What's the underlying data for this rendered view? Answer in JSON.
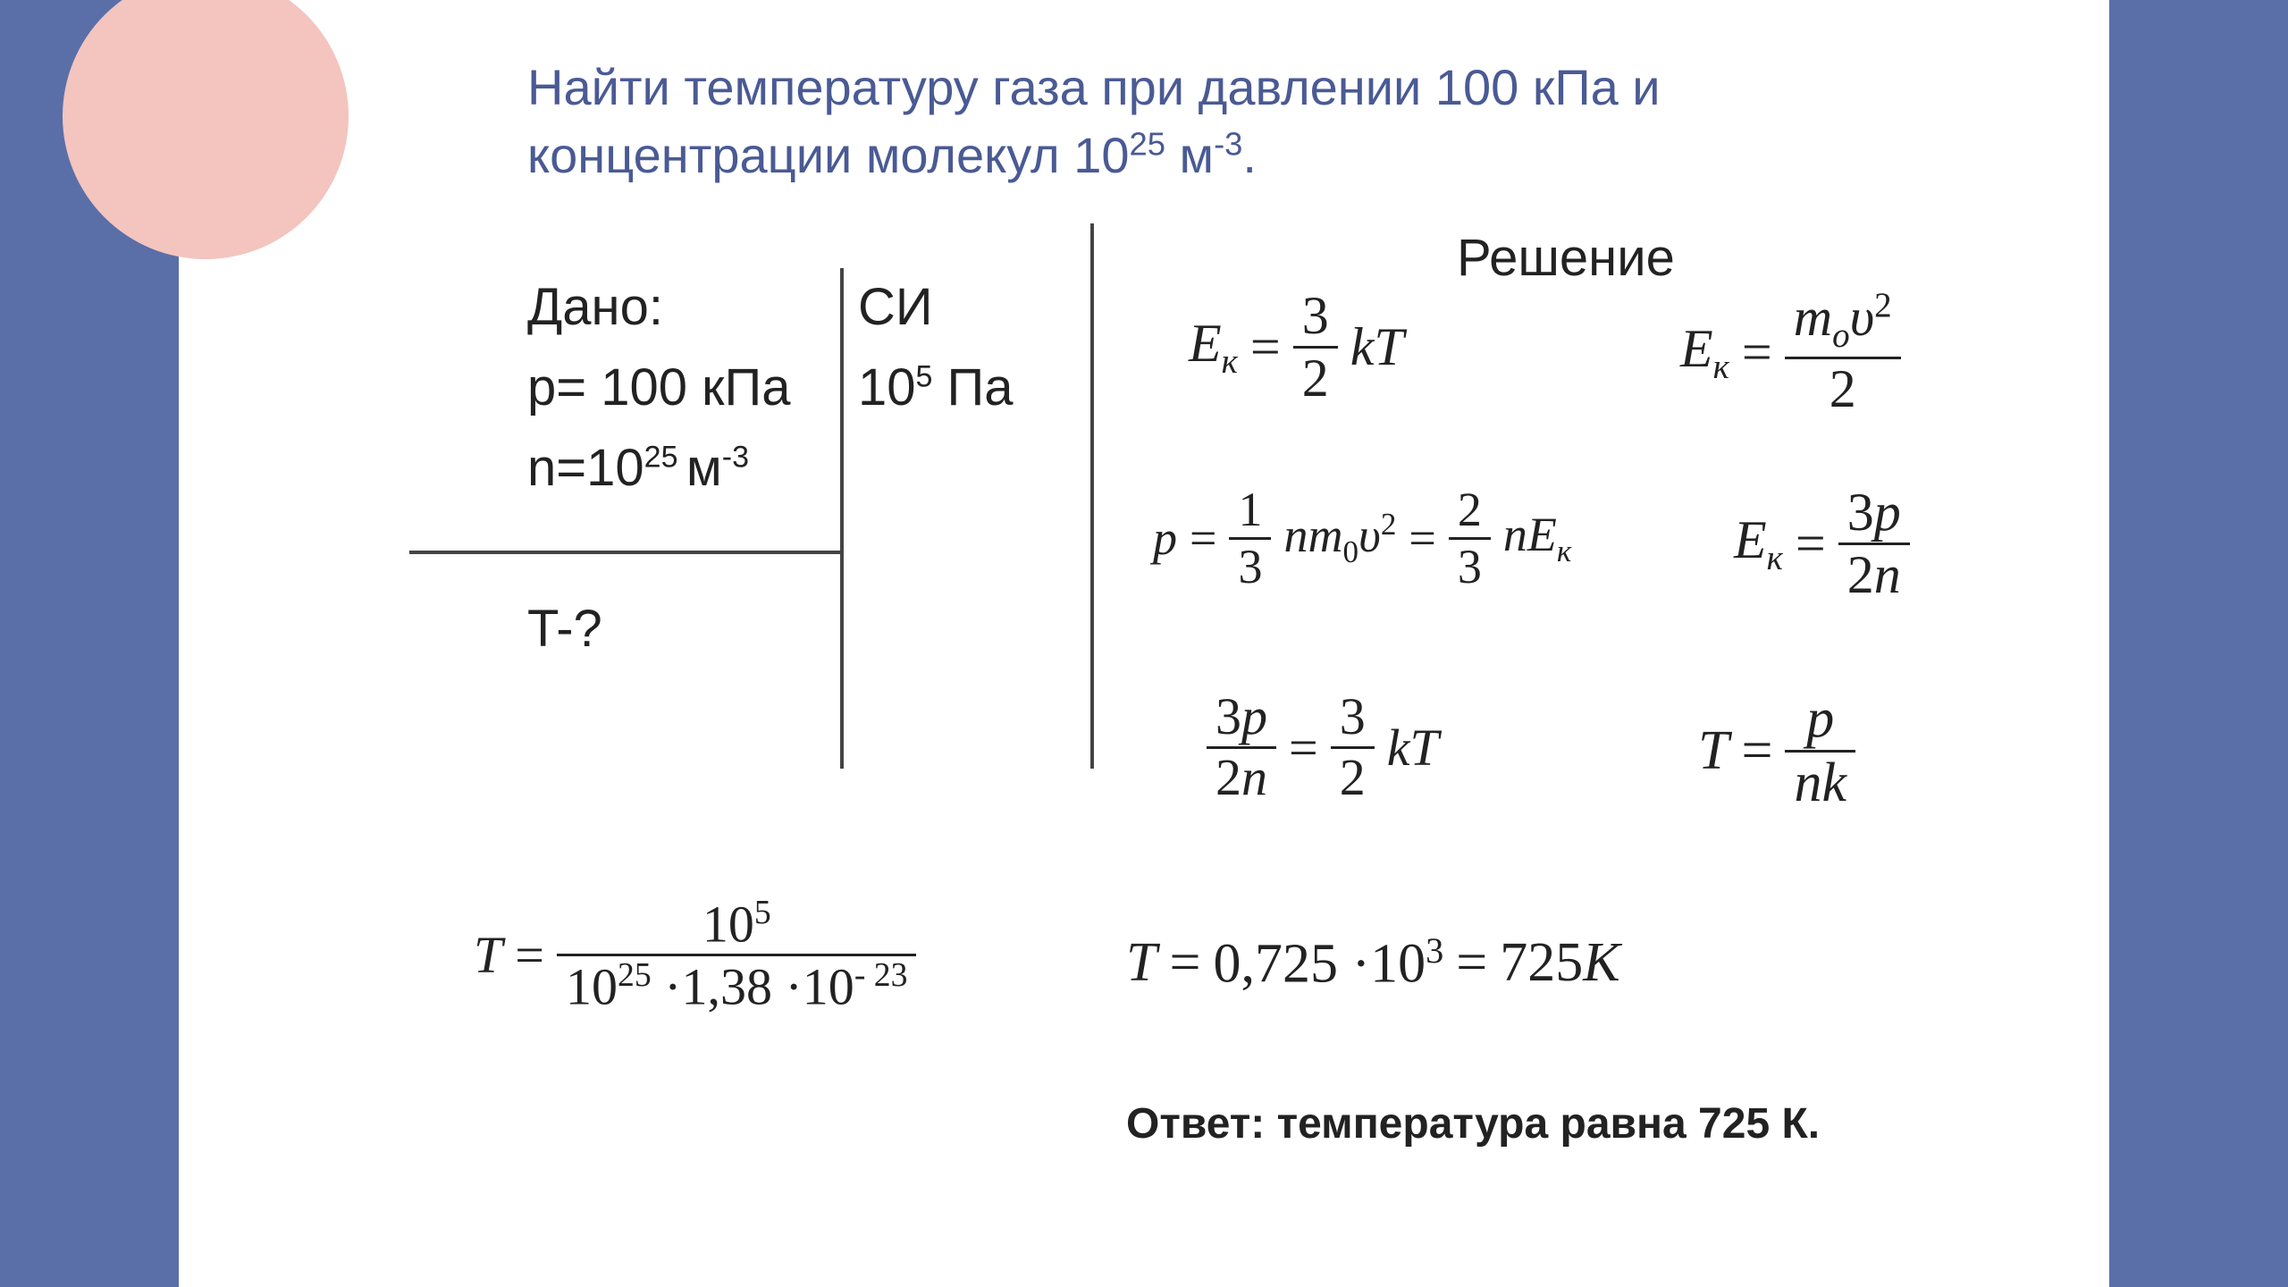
{
  "colors": {
    "slide_bg": "#ffffff",
    "frame_bg": "#5a6fa8",
    "title_color": "#4a5a94",
    "text_color": "#222222",
    "circle_color": "#f4c4bf",
    "line_color": "#444444"
  },
  "title": {
    "line1": "Найти температуру газа при давлении 100 кПа и",
    "line2_pre": "концентрации молекул 10",
    "line2_sup": "25",
    "line2_mid": " м",
    "line2_sup2": "-3",
    "line2_post": "."
  },
  "dano": {
    "label": "Дано:",
    "p_pre": "p= 100 кПа",
    "n_pre": "n=10",
    "n_sup": "25 ",
    "n_mid": "м",
    "n_sup2": "-3"
  },
  "si": {
    "label": "СИ",
    "p_pre": "10",
    "p_sup": "5",
    "p_post": " Па"
  },
  "find": "T-?",
  "solution_label": "Решение",
  "eq1": {
    "lhs": "E",
    "lhs_sub": "к",
    "eq": "=",
    "num": "3",
    "den": "2",
    "rhs": "kT"
  },
  "eq2": {
    "lhs": "E",
    "lhs_sub": "к",
    "eq": "=",
    "num_a": "m",
    "num_sub": "o",
    "num_b": "υ",
    "num_sup": "2",
    "den": "2"
  },
  "eq3": {
    "p": "p",
    "eq1": "=",
    "f1num": "1",
    "f1den": "3",
    "mid1a": "nm",
    "mid1sub": "0",
    "mid1b": "υ",
    "mid1sup": "2",
    "eq2": "=",
    "f2num": "2",
    "f2den": "3",
    "mid2a": "nE",
    "mid2sub": "к"
  },
  "eq4": {
    "lhs": "E",
    "lhs_sub": "к",
    "eq": "=",
    "num_a": "3",
    "num_b": "p",
    "den_a": "2",
    "den_b": "n"
  },
  "eq5": {
    "num_a": "3",
    "num_b": "p",
    "den_a": "2",
    "den_b": "n",
    "eq": "=",
    "num2": "3",
    "den2": "2",
    "rhs": "kT"
  },
  "eq6": {
    "lhs": "T",
    "eq": "=",
    "num": "p",
    "den": "nk"
  },
  "eq7": {
    "lhs": "T",
    "eq": "=",
    "num_a": "10",
    "num_sup": "5",
    "den_a": "10",
    "den_sup1": "25",
    "den_b": " ·1,38 ·10",
    "den_sup2": "- 23"
  },
  "eq8": {
    "lhs": "T",
    "eq1": "=",
    "mid_a": "0,725 ·10",
    "mid_sup": "3",
    "eq2": "=",
    "rhs_a": "725",
    "rhs_b": "К"
  },
  "answer": "Ответ: температура равна 725 К."
}
